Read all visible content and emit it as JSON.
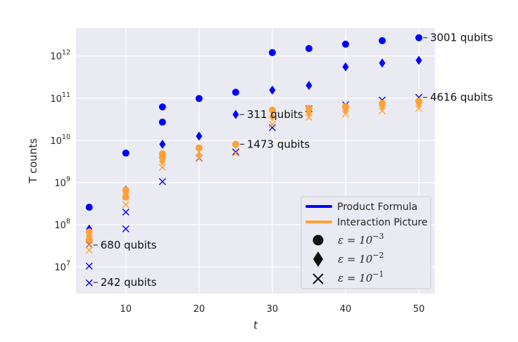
{
  "chart_data": {
    "type": "scatter",
    "xlabel": "t",
    "ylabel": "T counts",
    "xlim": [
      3.2,
      52.2
    ],
    "ylim_log10": [
      6.37,
      12.66
    ],
    "x_ticks": [
      10,
      20,
      30,
      40,
      50
    ],
    "y_ticks": [
      {
        "exp": 7,
        "base": "10",
        "sup": "7"
      },
      {
        "exp": 8,
        "base": "10",
        "sup": "8"
      },
      {
        "exp": 9,
        "base": "10",
        "sup": "9"
      },
      {
        "exp": 10,
        "base": "10",
        "sup": "10"
      },
      {
        "exp": 11,
        "base": "10",
        "sup": "11"
      },
      {
        "exp": 12,
        "base": "10",
        "sup": "12"
      }
    ],
    "grid": true,
    "legend": {
      "position": "lower-right",
      "methods": [
        {
          "label": "Product Formula",
          "color": "#0000ff"
        },
        {
          "label": "Interaction Picture",
          "color": "#ffa135"
        }
      ],
      "markers": [
        {
          "marker": "circle",
          "prefix": "ε = 10",
          "exponent": "−3"
        },
        {
          "marker": "diamond",
          "prefix": "ε = 10",
          "exponent": "−2"
        },
        {
          "marker": "x",
          "prefix": "ε = 10",
          "exponent": "−1"
        }
      ]
    },
    "series": [
      {
        "name": "Product Formula, ε=1e-3",
        "color": "#0000ff",
        "marker": "circle",
        "x": [
          5,
          10,
          15,
          15,
          20,
          25,
          30,
          35,
          40,
          45,
          50
        ],
        "y": [
          260000000.0,
          5000000000.0,
          62000000000.0,
          27000000000.0,
          98000000000.0,
          138000000000.0,
          1200000000000.0,
          1500000000000.0,
          1900000000000.0,
          2300000000000.0,
          2700000000000.0
        ]
      },
      {
        "name": "Product Formula, ε=1e-2",
        "color": "#0000ff",
        "marker": "diamond",
        "x": [
          5,
          10,
          15,
          20,
          25,
          30,
          35,
          40,
          45,
          50
        ],
        "y": [
          79000000.0,
          660000000.0,
          8100000000.0,
          12600000000.0,
          41000000000.0,
          155000000000.0,
          200000000000.0,
          550000000000.0,
          680000000000.0,
          790000000000.0
        ]
      },
      {
        "name": "Product Formula, ε=1e-1",
        "color": "#0000ff",
        "marker": "x",
        "x": [
          5,
          5,
          5,
          10,
          10,
          15,
          20,
          25,
          30,
          35,
          40,
          45,
          50
        ],
        "y": [
          34000000.0,
          10500000.0,
          4200000.0,
          200000000.0,
          80000000.0,
          1050000000.0,
          3800000000.0,
          5300000000.0,
          20000000000.0,
          56000000000.0,
          70000000000.0,
          90000000000.0,
          104000000000.0
        ]
      },
      {
        "name": "Interaction Picture, ε=1e-3",
        "color": "#ffa135",
        "marker": "circle",
        "x": [
          5,
          5,
          10,
          10,
          15,
          15,
          20,
          25,
          30,
          35,
          40,
          45,
          50
        ],
        "y": [
          68000000.0,
          45000000.0,
          660000000.0,
          450000000.0,
          4800000000.0,
          3900000000.0,
          6600000000.0,
          8100000000.0,
          52000000000.0,
          57000000000.0,
          63000000000.0,
          75000000000.0,
          85000000000.0
        ]
      },
      {
        "name": "Interaction Picture, ε=1e-2",
        "color": "#ffa135",
        "marker": "diamond",
        "x": [
          5,
          10,
          15,
          20,
          25,
          30,
          35,
          40,
          45,
          50
        ],
        "y": [
          55000000.0,
          560000000.0,
          3200000000.0,
          4400000000.0,
          7900000000.0,
          36000000000.0,
          46000000000.0,
          54000000000.0,
          66000000000.0,
          75000000000.0
        ]
      },
      {
        "name": "Interaction Picture, ε=1e-1",
        "color": "#ffa135",
        "marker": "x",
        "x": [
          5,
          5,
          10,
          10,
          15,
          20,
          25,
          30,
          35,
          40,
          45,
          50
        ],
        "y": [
          25000000.0,
          33000000.0,
          300000000.0,
          480000000.0,
          2300000000.0,
          3700000000.0,
          5000000000.0,
          24000000000.0,
          35000000000.0,
          42000000000.0,
          50000000000.0,
          57000000000.0
        ]
      }
    ],
    "annotations": [
      {
        "text": "680 qubits",
        "x": 5,
        "y": 33000000.0
      },
      {
        "text": "242 qubits",
        "x": 5,
        "y": 4300000.0
      },
      {
        "text": "311 qubits",
        "x": 25,
        "y": 41000000000.0
      },
      {
        "text": "1473 qubits",
        "x": 25,
        "y": 8100000000.0
      },
      {
        "text": "3001 qubits",
        "x": 50,
        "y": 2700000000000.0
      },
      {
        "text": "4616 qubits",
        "x": 50,
        "y": 104000000000.0
      }
    ]
  }
}
